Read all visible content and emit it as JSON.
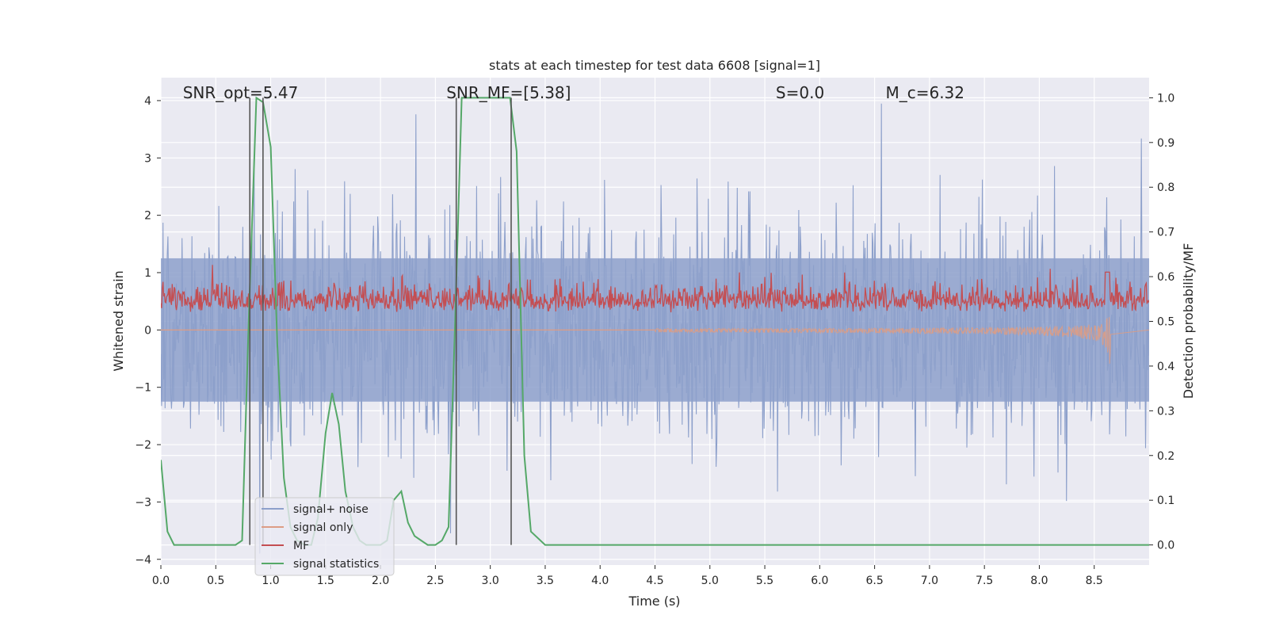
{
  "chart_data": {
    "type": "line",
    "title": "stats at each timestep for test data 6608 [signal=1]",
    "xlabel": "Time (s)",
    "ylabel_left": "Whitened strain",
    "ylabel_right": "Detection probability/MF",
    "xlim": [
      0,
      9.0
    ],
    "ylim_left": [
      -4.1,
      4.4
    ],
    "ylim_right": [
      -0.045,
      1.045
    ],
    "x_ticks": [
      0.0,
      0.5,
      1.0,
      1.5,
      2.0,
      2.5,
      3.0,
      3.5,
      4.0,
      4.5,
      5.0,
      5.5,
      6.0,
      6.5,
      7.0,
      7.5,
      8.0,
      8.5
    ],
    "x_tick_labels": [
      "0.0",
      "0.5",
      "1.0",
      "1.5",
      "2.0",
      "2.5",
      "3.0",
      "3.5",
      "4.0",
      "4.5",
      "5.0",
      "5.5",
      "6.0",
      "6.5",
      "7.0",
      "7.5",
      "8.0",
      "8.5"
    ],
    "y_left_ticks": [
      -4,
      -3,
      -2,
      -1,
      0,
      1,
      2,
      3,
      4
    ],
    "y_left_tick_labels": [
      "−4",
      "−3",
      "−2",
      "−1",
      "0",
      "1",
      "2",
      "3",
      "4"
    ],
    "y_right_ticks": [
      0.0,
      0.1,
      0.2,
      0.3,
      0.4,
      0.5,
      0.6,
      0.7,
      0.8,
      0.9,
      1.0
    ],
    "y_right_tick_labels": [
      "0.0",
      "0.1",
      "0.2",
      "0.3",
      "0.4",
      "0.5",
      "0.6",
      "0.7",
      "0.8",
      "0.9",
      "1.0"
    ],
    "annotations": [
      {
        "text": "SNR_opt=5.47",
        "x": 0.2,
        "y": 4.15
      },
      {
        "text": "SNR_MF=[5.38]",
        "x": 2.6,
        "y": 4.15
      },
      {
        "text": "S=0.0",
        "x": 5.6,
        "y": 4.15
      },
      {
        "text": "M_c=6.32",
        "x": 6.6,
        "y": 4.15
      }
    ],
    "vertical_lines": [
      0.81,
      0.93,
      2.69,
      3.19
    ],
    "legend": {
      "placement": "lower-left",
      "entries": [
        "signal+ noise",
        "signal only",
        "MF",
        "signal statistics"
      ]
    },
    "grid": true,
    "series": [
      {
        "name": "signal+ noise",
        "axis": "left",
        "color": "#8da0cb",
        "kind": "noise",
        "seed": 6608,
        "n": 1400
      },
      {
        "name": "signal only",
        "axis": "left",
        "color": "#dd9c84",
        "kind": "chirp",
        "t_end": 8.65,
        "amp_max": 0.5
      },
      {
        "name": "MF",
        "axis": "right",
        "color": "#c44e52",
        "kind": "mf",
        "seed": 1234,
        "n": 1400
      },
      {
        "name": "signal statistics",
        "axis": "right",
        "color": "#55a868",
        "x": [
          0.0,
          0.06,
          0.12,
          0.2,
          0.3,
          0.4,
          0.5,
          0.6,
          0.68,
          0.74,
          0.8,
          0.87,
          0.93,
          1.0,
          1.06,
          1.12,
          1.18,
          1.24,
          1.31,
          1.37,
          1.43,
          1.5,
          1.56,
          1.62,
          1.68,
          1.75,
          1.81,
          1.87,
          1.94,
          2.0,
          2.06,
          2.12,
          2.19,
          2.25,
          2.31,
          2.37,
          2.43,
          2.5,
          2.56,
          2.62,
          2.68,
          2.74,
          2.8,
          3.0,
          3.1,
          3.18,
          3.24,
          3.31,
          3.37,
          3.5,
          4.0,
          5.0,
          6.0,
          7.0,
          8.0,
          9.0
        ],
        "y": [
          0.19,
          0.03,
          0.0,
          0.0,
          0.0,
          0.0,
          0.0,
          0.0,
          0.0,
          0.01,
          0.5,
          1.0,
          0.99,
          0.89,
          0.45,
          0.15,
          0.04,
          0.01,
          0.0,
          0.0,
          0.06,
          0.25,
          0.34,
          0.27,
          0.12,
          0.04,
          0.01,
          0.0,
          0.0,
          0.0,
          0.01,
          0.1,
          0.12,
          0.05,
          0.02,
          0.01,
          0.0,
          0.0,
          0.01,
          0.04,
          0.5,
          1.0,
          1.0,
          1.0,
          1.0,
          1.0,
          0.88,
          0.2,
          0.03,
          0.0,
          0.0,
          0.0,
          0.0,
          0.0,
          0.0,
          0.0
        ]
      }
    ]
  }
}
